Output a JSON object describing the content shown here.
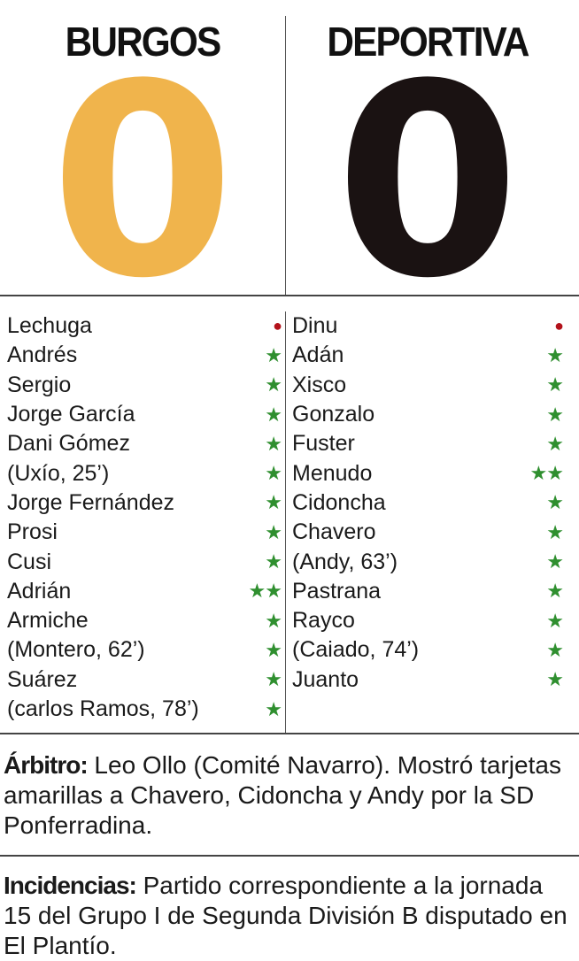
{
  "home": {
    "name": "BURGOS",
    "score": "0",
    "color": "#f0b44c",
    "players": [
      {
        "name": "Lechuga",
        "rating": "●"
      },
      {
        "name": "Andrés",
        "rating": "★"
      },
      {
        "name": "Sergio",
        "rating": "★"
      },
      {
        "name": "Jorge García",
        "rating": "★"
      },
      {
        "name": "Dani Gómez",
        "rating": "★"
      },
      {
        "name": "(Uxío, 25’)",
        "rating": "★"
      },
      {
        "name": "Jorge Fernández",
        "rating": "★"
      },
      {
        "name": "Prosi",
        "rating": "★"
      },
      {
        "name": "Cusi",
        "rating": "★"
      },
      {
        "name": "Adrián",
        "rating": "★★"
      },
      {
        "name": "Armiche",
        "rating": "★"
      },
      {
        "name": "(Montero, 62’)",
        "rating": "★"
      },
      {
        "name": "Suárez",
        "rating": "★"
      },
      {
        "name": "(carlos Ramos, 78’)",
        "rating": "★"
      }
    ]
  },
  "away": {
    "name": "DEPORTIVA",
    "score": "0",
    "color": "#1a1212",
    "players": [
      {
        "name": "Dinu",
        "rating": "●"
      },
      {
        "name": "Adán",
        "rating": "★"
      },
      {
        "name": "Xisco",
        "rating": "★"
      },
      {
        "name": "Gonzalo",
        "rating": "★"
      },
      {
        "name": "Fuster",
        "rating": "★"
      },
      {
        "name": "Menudo",
        "rating": "★★"
      },
      {
        "name": "Cidoncha",
        "rating": "★"
      },
      {
        "name": "Chavero",
        "rating": "★"
      },
      {
        "name": "(Andy, 63’)",
        "rating": "★"
      },
      {
        "name": "Pastrana",
        "rating": "★"
      },
      {
        "name": "Rayco",
        "rating": "★"
      },
      {
        "name": "(Caiado, 74’)",
        "rating": "★"
      },
      {
        "name": "Juanto",
        "rating": "★"
      }
    ]
  },
  "arbitro": {
    "label": "Árbitro:",
    "text": " Leo Ollo (Comité Navarro). Mostró tarjetas amarillas a Chavero, Cidoncha y Andy por la SD Ponferradina."
  },
  "incidencias": {
    "label": "Incidencias:",
    "text": " Partido correspondiente a la jornada 15 del Grupo I de Segunda División B disputado en El Plantío."
  }
}
